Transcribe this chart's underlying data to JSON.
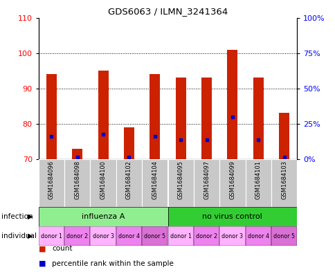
{
  "title": "GDS6063 / ILMN_3241364",
  "samples": [
    "GSM1684096",
    "GSM1684098",
    "GSM1684100",
    "GSM1684102",
    "GSM1684104",
    "GSM1684095",
    "GSM1684097",
    "GSM1684099",
    "GSM1684101",
    "GSM1684103"
  ],
  "count_values": [
    94,
    73,
    95,
    79,
    94,
    93,
    93,
    101,
    93,
    83
  ],
  "percentile_left_values": [
    76.5,
    70.5,
    77,
    70.5,
    76.5,
    75.5,
    75.5,
    82,
    75.5,
    70.5
  ],
  "ylim_left": [
    70,
    110
  ],
  "ylim_right": [
    0,
    100
  ],
  "yticks_left": [
    70,
    80,
    90,
    100,
    110
  ],
  "ytick_labels_left": [
    "70",
    "80",
    "90",
    "100",
    "110"
  ],
  "yticks_right": [
    0,
    25,
    50,
    75,
    100
  ],
  "ytick_labels_right": [
    "0%",
    "25%",
    "50%",
    "75%",
    "100%"
  ],
  "infection_groups": [
    {
      "label": "influenza A",
      "start": 0,
      "end": 5,
      "color": "#90EE90"
    },
    {
      "label": "no virus control",
      "start": 5,
      "end": 10,
      "color": "#32CD32"
    }
  ],
  "individual_labels": [
    "donor 1",
    "donor 2",
    "donor 3",
    "donor 4",
    "donor 5",
    "donor 1",
    "donor 2",
    "donor 3",
    "donor 4",
    "donor 5"
  ],
  "individual_colors": [
    "#FFB3FF",
    "#EE82EE",
    "#FFB3FF",
    "#EE82EE",
    "#DA70D6",
    "#FFB3FF",
    "#EE82EE",
    "#FFB3FF",
    "#EE82EE",
    "#DA70D6"
  ],
  "bar_color": "#CC2200",
  "percentile_color": "#0000CC",
  "sample_bg_color": "#C8C8C8",
  "bar_bottom": 70,
  "legend_count_color": "#CC2200",
  "legend_pct_color": "#0000CC",
  "bar_width": 0.4
}
